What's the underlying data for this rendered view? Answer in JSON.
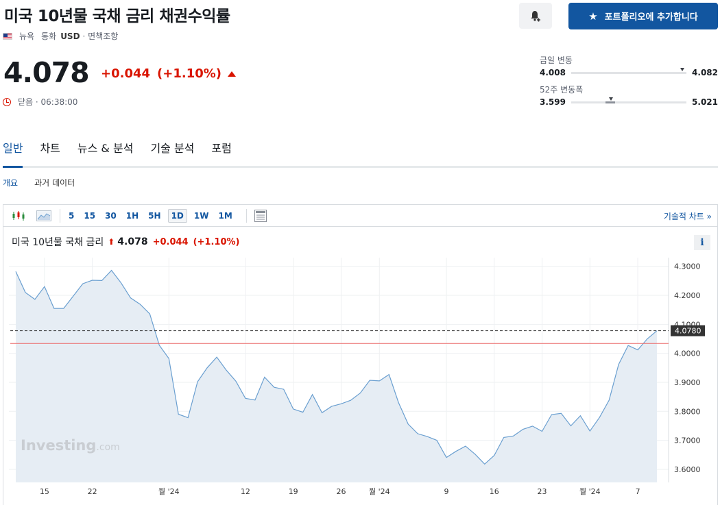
{
  "header": {
    "title": "미국 10년물 국채 금리 채권수익률",
    "market": "뉴욕",
    "currency_label": "통화",
    "currency": "USD",
    "disclaimer": "· 면책조항",
    "portfolio_button": "포트폴리오에 추가합니다"
  },
  "quote": {
    "price": "4.078",
    "change": "+0.044",
    "change_pct": "(+1.10%)",
    "status": "닫음 · 06:38:00"
  },
  "ranges": {
    "day": {
      "label": "금일 변동",
      "low": "4.008",
      "high": "4.082",
      "current": 4.078
    },
    "week52": {
      "label": "52주 변동폭",
      "low": "3.599",
      "high": "5.021",
      "current": 4.078
    }
  },
  "tabs": [
    "일반",
    "차트",
    "뉴스 & 분석",
    "기술 분석",
    "포럼"
  ],
  "subtabs": [
    "개요",
    "과거 데이터"
  ],
  "toolbar": {
    "timeframes": [
      "5",
      "15",
      "30",
      "1H",
      "5H",
      "1D",
      "1W",
      "1M"
    ],
    "active_timeframe": "1D",
    "tech_chart_link": "기술적 차트 »"
  },
  "chart_header": {
    "name": "미국 10년물 국채 금리",
    "price": "4.078",
    "change": "+0.044",
    "change_pct": "(+1.10%)"
  },
  "watermark": {
    "brand": "Investing",
    "suffix": ".com"
  },
  "colors": {
    "accent": "#1256a0",
    "negative_change": "#d91400",
    "series_line": "#6a9fd0",
    "series_fill": "#e6edf4",
    "prev_close_line": "#ec6a6a"
  },
  "chart_data": {
    "type": "area",
    "x": [
      0,
      1,
      2,
      3,
      4,
      5,
      6,
      7,
      8,
      9,
      10,
      11,
      12,
      13,
      14,
      15,
      16,
      17,
      18,
      19,
      20,
      21,
      22,
      23,
      24,
      25,
      26,
      27,
      28,
      29,
      30,
      31,
      32,
      33,
      34,
      35,
      36,
      37,
      38,
      39,
      40,
      41,
      42,
      43,
      44,
      45,
      46,
      47,
      48,
      49,
      50,
      51,
      52,
      53,
      54,
      55,
      56,
      57,
      58,
      59,
      60,
      61,
      62,
      63,
      64,
      65,
      66,
      67
    ],
    "y": [
      4.282,
      4.21,
      4.186,
      4.23,
      4.155,
      4.155,
      4.197,
      4.24,
      4.252,
      4.251,
      4.286,
      4.243,
      4.191,
      4.169,
      4.136,
      4.028,
      3.982,
      3.79,
      3.778,
      3.902,
      3.95,
      3.987,
      3.942,
      3.904,
      3.845,
      3.839,
      3.918,
      3.883,
      3.876,
      3.808,
      3.797,
      3.858,
      3.795,
      3.817,
      3.826,
      3.838,
      3.863,
      3.907,
      3.905,
      3.927,
      3.83,
      3.756,
      3.723,
      3.713,
      3.7,
      3.641,
      3.662,
      3.68,
      3.652,
      3.618,
      3.648,
      3.71,
      3.715,
      3.738,
      3.749,
      3.731,
      3.789,
      3.793,
      3.75,
      3.785,
      3.732,
      3.779,
      3.838,
      3.962,
      4.027,
      4.012,
      4.05,
      4.078
    ],
    "x_ticks": [
      {
        "x": 3,
        "label": "15"
      },
      {
        "x": 8,
        "label": "22"
      },
      {
        "x": 16,
        "label": "월 '24"
      },
      {
        "x": 24,
        "label": "12"
      },
      {
        "x": 29,
        "label": "19"
      },
      {
        "x": 34,
        "label": "26"
      },
      {
        "x": 38,
        "label": "월 '24"
      },
      {
        "x": 45,
        "label": "9"
      },
      {
        "x": 50,
        "label": "16"
      },
      {
        "x": 55,
        "label": "23"
      },
      {
        "x": 60,
        "label": "월 '24"
      },
      {
        "x": 65,
        "label": "7"
      }
    ],
    "y_ticks": [
      3.6,
      3.7,
      3.8,
      3.9,
      4.0,
      4.1,
      4.2,
      4.3
    ],
    "y_tick_labels": [
      "3.6000",
      "3.7000",
      "3.8000",
      "3.9000",
      "4.0000",
      "4.1000",
      "4.2000",
      "4.3000"
    ],
    "ylim": [
      3.555,
      4.33
    ],
    "last_value": 4.078,
    "last_value_label": "4.0780",
    "prev_close": 4.034,
    "grid": true
  }
}
